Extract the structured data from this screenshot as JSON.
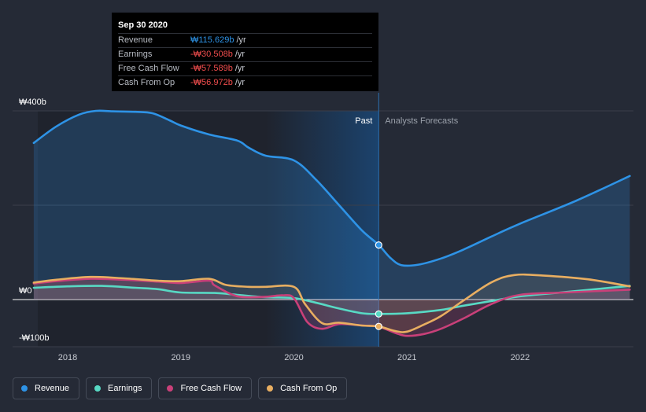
{
  "chart_data": {
    "type": "area",
    "currency_symbol": "₩",
    "x_ticks": [
      "2018",
      "2019",
      "2020",
      "2021",
      "2022"
    ],
    "y_ticks": [
      {
        "value": 400,
        "label": "₩400b"
      },
      {
        "value": 0,
        "label": "₩0"
      },
      {
        "value": -100,
        "label": "-₩100b"
      }
    ],
    "ylim": [
      -100,
      400
    ],
    "xlim": [
      2017.7,
      2022.97
    ],
    "past_end": 2020.75,
    "regions": {
      "past": "Past",
      "forecast": "Analysts Forecasts"
    },
    "grid": true,
    "series": [
      {
        "name": "Revenue",
        "color": "#2e93e6",
        "points": [
          [
            2017.7,
            332
          ],
          [
            2017.9,
            367
          ],
          [
            2018.1,
            392
          ],
          [
            2018.25,
            400
          ],
          [
            2018.4,
            399
          ],
          [
            2018.6,
            398
          ],
          [
            2018.75,
            395
          ],
          [
            2018.9,
            380
          ],
          [
            2019.0,
            369
          ],
          [
            2019.25,
            350
          ],
          [
            2019.5,
            337
          ],
          [
            2019.6,
            322
          ],
          [
            2019.75,
            305
          ],
          [
            2020.0,
            295
          ],
          [
            2020.2,
            253
          ],
          [
            2020.4,
            200
          ],
          [
            2020.6,
            147
          ],
          [
            2020.75,
            115.629
          ],
          [
            2020.85,
            89
          ],
          [
            2020.95,
            73
          ],
          [
            2021.1,
            74
          ],
          [
            2021.3,
            87
          ],
          [
            2021.5,
            106
          ],
          [
            2021.75,
            134
          ],
          [
            2022.0,
            161
          ],
          [
            2022.5,
            210
          ],
          [
            2022.97,
            262
          ]
        ]
      },
      {
        "name": "Earnings",
        "color": "#58d9c4",
        "points": [
          [
            2017.7,
            25
          ],
          [
            2018.0,
            28
          ],
          [
            2018.3,
            29
          ],
          [
            2018.6,
            25
          ],
          [
            2018.8,
            22
          ],
          [
            2019.0,
            15
          ],
          [
            2019.3,
            14
          ],
          [
            2019.5,
            10
          ],
          [
            2019.75,
            5
          ],
          [
            2020.0,
            3
          ],
          [
            2020.2,
            -7
          ],
          [
            2020.4,
            -19
          ],
          [
            2020.6,
            -29
          ],
          [
            2020.75,
            -30.508
          ],
          [
            2021.0,
            -29
          ],
          [
            2021.3,
            -22
          ],
          [
            2021.5,
            -13
          ],
          [
            2021.75,
            -3
          ],
          [
            2022.0,
            7
          ],
          [
            2022.4,
            16
          ],
          [
            2022.97,
            29
          ]
        ]
      },
      {
        "name": "Free Cash Flow",
        "color": "#c94079",
        "points": [
          [
            2017.7,
            34
          ],
          [
            2017.9,
            39
          ],
          [
            2018.2,
            44
          ],
          [
            2018.5,
            42
          ],
          [
            2018.8,
            38
          ],
          [
            2019.0,
            35
          ],
          [
            2019.25,
            40
          ],
          [
            2019.3,
            30
          ],
          [
            2019.5,
            7
          ],
          [
            2019.75,
            6
          ],
          [
            2019.9,
            9
          ],
          [
            2020.0,
            3
          ],
          [
            2020.12,
            -48
          ],
          [
            2020.25,
            -62
          ],
          [
            2020.4,
            -52
          ],
          [
            2020.6,
            -55
          ],
          [
            2020.75,
            -57.589
          ],
          [
            2020.9,
            -71
          ],
          [
            2021.0,
            -77
          ],
          [
            2021.15,
            -73
          ],
          [
            2021.3,
            -62
          ],
          [
            2021.5,
            -40
          ],
          [
            2021.75,
            -9
          ],
          [
            2022.0,
            10
          ],
          [
            2022.4,
            15
          ],
          [
            2022.97,
            21
          ]
        ]
      },
      {
        "name": "Cash From Op",
        "color": "#e8ae61",
        "points": [
          [
            2017.7,
            36
          ],
          [
            2017.9,
            42
          ],
          [
            2018.2,
            48
          ],
          [
            2018.5,
            45
          ],
          [
            2018.8,
            40
          ],
          [
            2019.0,
            39
          ],
          [
            2019.25,
            44
          ],
          [
            2019.4,
            31
          ],
          [
            2019.6,
            27
          ],
          [
            2019.75,
            27
          ],
          [
            2020.0,
            27
          ],
          [
            2020.1,
            -10
          ],
          [
            2020.25,
            -50
          ],
          [
            2020.4,
            -49
          ],
          [
            2020.6,
            -55
          ],
          [
            2020.75,
            -56.972
          ],
          [
            2020.9,
            -67
          ],
          [
            2021.0,
            -68
          ],
          [
            2021.15,
            -53
          ],
          [
            2021.3,
            -35
          ],
          [
            2021.5,
            -2
          ],
          [
            2021.75,
            37
          ],
          [
            2021.95,
            52
          ],
          [
            2022.2,
            51
          ],
          [
            2022.6,
            43
          ],
          [
            2022.97,
            28
          ]
        ]
      }
    ],
    "markers": [
      {
        "series": "Revenue",
        "x": 2020.75,
        "y": 115.629
      },
      {
        "series": "Earnings",
        "x": 2020.75,
        "y": -30.508
      },
      {
        "series": "Cash From Op",
        "x": 2020.75,
        "y": -56.972
      }
    ]
  },
  "tooltip": {
    "date": "Sep 30 2020",
    "unit": "/yr",
    "rows": [
      {
        "label": "Revenue",
        "value": "₩115.629b",
        "color": "#2e93e6"
      },
      {
        "label": "Earnings",
        "value": "-₩30.508b",
        "color": "#f04d4d"
      },
      {
        "label": "Free Cash Flow",
        "value": "-₩57.589b",
        "color": "#f04d4d"
      },
      {
        "label": "Cash From Op",
        "value": "-₩56.972b",
        "color": "#f04d4d"
      }
    ]
  },
  "legend": [
    {
      "label": "Revenue",
      "color": "#2e93e6"
    },
    {
      "label": "Earnings",
      "color": "#58d9c4"
    },
    {
      "label": "Free Cash Flow",
      "color": "#c94079"
    },
    {
      "label": "Cash From Op",
      "color": "#e8ae61"
    }
  ]
}
